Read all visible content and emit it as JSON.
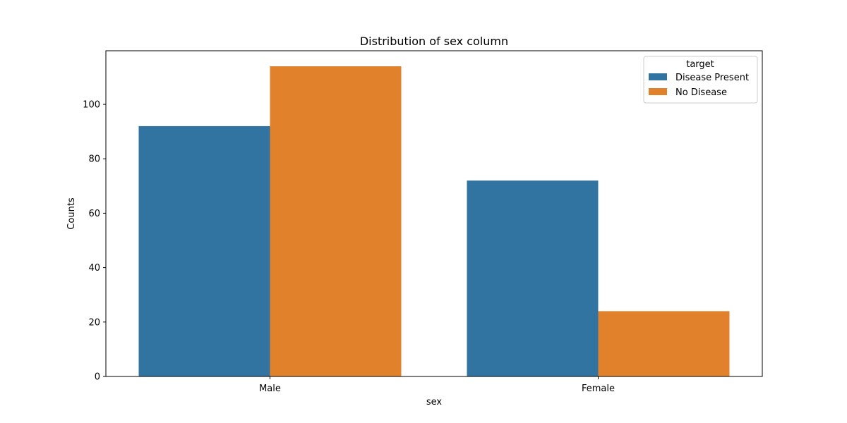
{
  "chart_data": {
    "type": "bar",
    "title": "Distribution of sex column",
    "xlabel": "sex",
    "ylabel": "Counts",
    "categories": [
      "Male",
      "Female"
    ],
    "series": [
      {
        "name": "Disease Present",
        "values": [
          92,
          72
        ],
        "color": "#3274a1"
      },
      {
        "name": "No Disease",
        "values": [
          114,
          24
        ],
        "color": "#e1812c"
      }
    ],
    "ylim": [
      0,
      119.7
    ],
    "yticks": [
      0,
      20,
      40,
      60,
      80,
      100
    ],
    "grid": false,
    "legend": {
      "title": "target",
      "placement": "top-right"
    }
  }
}
